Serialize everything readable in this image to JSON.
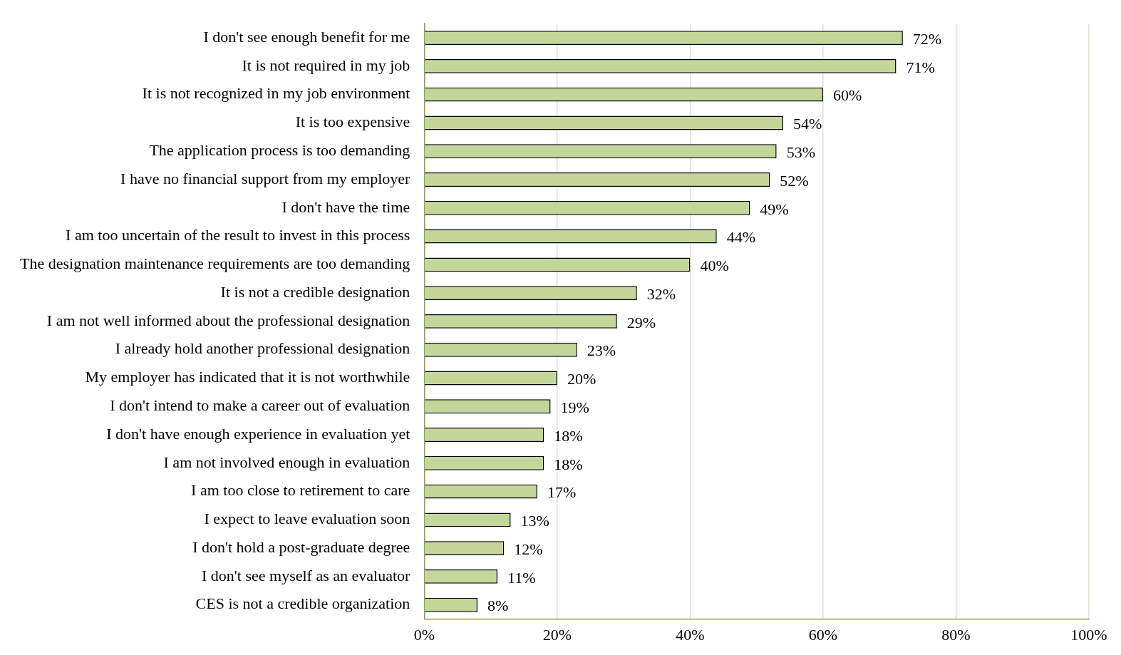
{
  "chart_data": {
    "type": "bar",
    "orientation": "horizontal",
    "categories": [
      "I don't see enough benefit for me",
      "It is not required in my job",
      "It is not recognized in my job environment",
      "It is too expensive",
      "The application process is too demanding",
      "I have no financial support from my employer",
      "I don't have the time",
      "I am too uncertain of the result to invest in this process",
      "The designation maintenance requirements are too demanding",
      "It is not a credible designation",
      "I am not well informed about the professional designation",
      "I already hold another professional designation",
      "My employer has indicated that it is not worthwhile",
      "I don't intend to make a career out of evaluation",
      "I don't have enough experience in evaluation yet",
      "I am not involved enough in evaluation",
      "I am too close to retirement to care",
      "I expect to leave evaluation soon",
      "I don't hold a post-graduate degree",
      "I don't see myself as an evaluator",
      "CES is not a credible organization"
    ],
    "values": [
      72,
      71,
      60,
      54,
      53,
      52,
      49,
      44,
      40,
      32,
      29,
      23,
      20,
      19,
      18,
      18,
      17,
      13,
      12,
      11,
      8
    ],
    "value_labels": [
      "72%",
      "71%",
      "60%",
      "54%",
      "53%",
      "52%",
      "49%",
      "44%",
      "40%",
      "32%",
      "29%",
      "23%",
      "20%",
      "19%",
      "18%",
      "18%",
      "17%",
      "13%",
      "12%",
      "11%",
      "8%"
    ],
    "color": "#c4d79b",
    "xlim": [
      0,
      100
    ],
    "xticks": [
      {
        "value": 0,
        "label": "0%"
      },
      {
        "value": 20,
        "label": "20%"
      },
      {
        "value": 40,
        "label": "40%"
      },
      {
        "value": 60,
        "label": "60%"
      },
      {
        "value": 80,
        "label": "80%"
      },
      {
        "value": 100,
        "label": "100%"
      }
    ],
    "grid": "x",
    "legend": false
  }
}
